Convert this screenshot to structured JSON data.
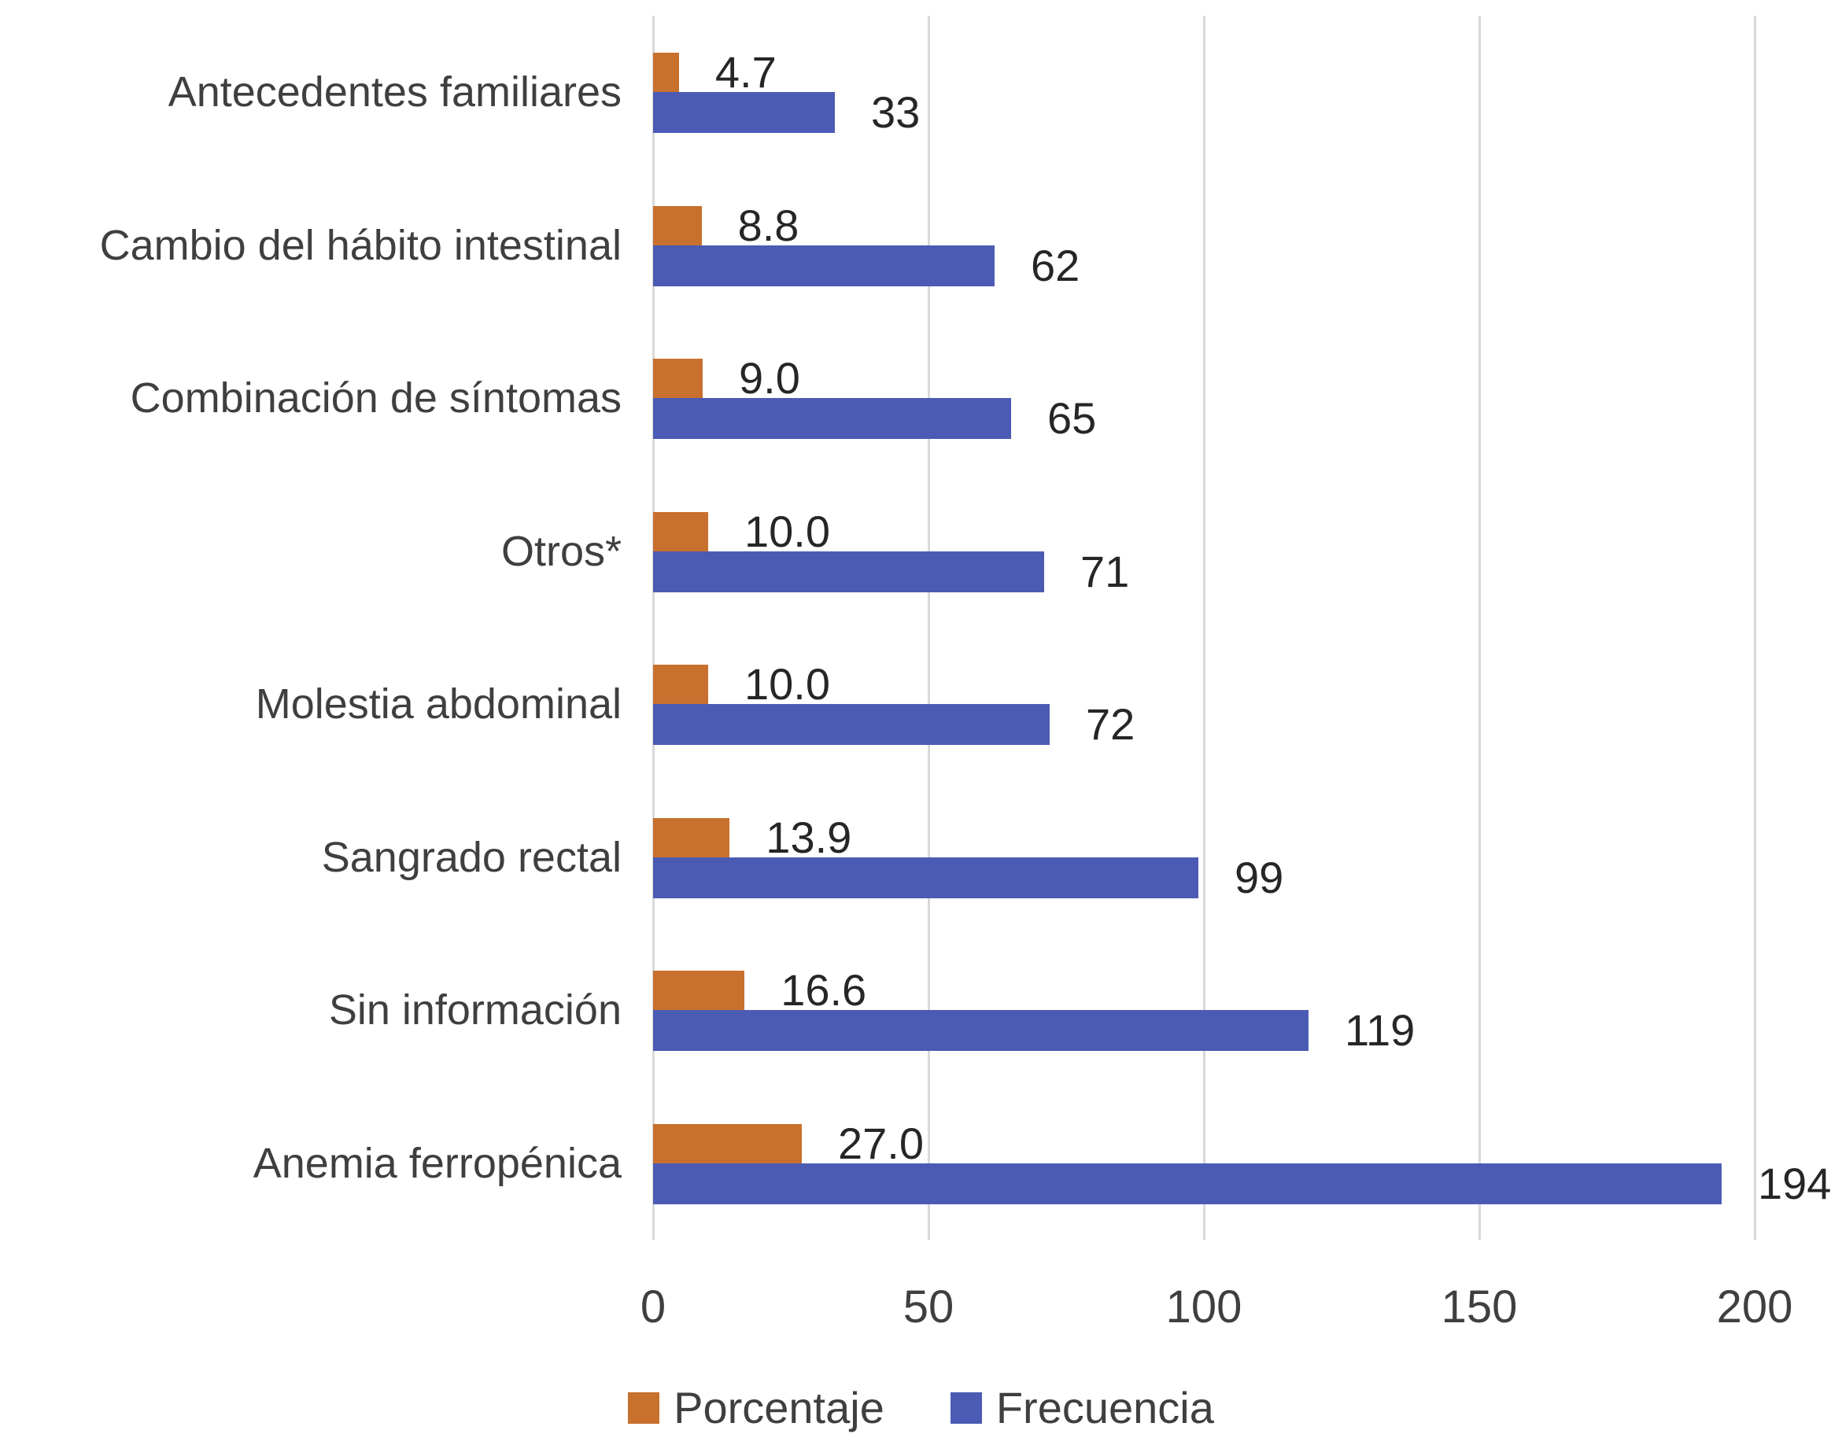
{
  "chart_data": {
    "type": "bar",
    "orientation": "horizontal",
    "title": "",
    "xlabel": "",
    "ylabel": "",
    "categories": [
      "Antecedentes familiares",
      "Cambio del hábito intestinal",
      "Combinación de síntomas",
      "Otros*",
      "Molestia abdominal",
      "Sangrado rectal",
      "Sin información",
      "Anemia ferropénica"
    ],
    "series": [
      {
        "name": "Porcentaje",
        "color": "#C8702E",
        "values": [
          4.7,
          8.8,
          9.0,
          10.0,
          10.0,
          13.9,
          16.6,
          27.0
        ],
        "labels": [
          "4.7",
          "8.8",
          "9.0",
          "10.0",
          "10.0",
          "13.9",
          "16.6",
          "27.0"
        ]
      },
      {
        "name": "Frecuencia",
        "color": "#4B5BB4",
        "values": [
          33,
          62,
          65,
          71,
          72,
          99,
          119,
          194
        ],
        "labels": [
          "33",
          "62",
          "65",
          "71",
          "72",
          "99",
          "119",
          "194"
        ]
      }
    ],
    "x_ticks": [
      0,
      50,
      100,
      150,
      200
    ],
    "x_tick_labels": [
      "0",
      "50",
      "100",
      "150",
      "200"
    ],
    "xlim": [
      0,
      200
    ],
    "grid": true,
    "legend_position": "bottom",
    "colors": {
      "gridline": "#D9D9D9",
      "axis_text": "#3F3F3F",
      "category_text": "#3F3F3F",
      "value_text": "#262626"
    }
  }
}
